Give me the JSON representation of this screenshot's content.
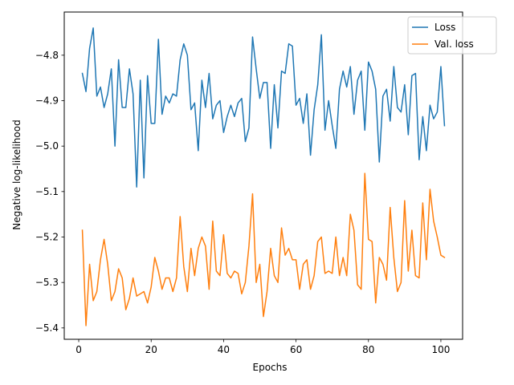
{
  "chart_data": {
    "type": "line",
    "title": "",
    "xlabel": "Epochs",
    "ylabel": "Negative log-likelihood",
    "xlim": [
      -4,
      106
    ],
    "ylim": [
      -5.425,
      -4.705
    ],
    "xticks": [
      0,
      20,
      40,
      60,
      80,
      100
    ],
    "xtick_labels": [
      "0",
      "20",
      "40",
      "60",
      "80",
      "100"
    ],
    "yticks": [
      -5.4,
      -5.3,
      -5.2,
      -5.1,
      -5.0,
      -4.9,
      -4.8
    ],
    "ytick_labels": [
      "−5.4",
      "−5.3",
      "−5.2",
      "−5.1",
      "−5.0",
      "−4.9",
      "−4.8"
    ],
    "grid": false,
    "legend_position": "top-right",
    "x": [
      1,
      2,
      3,
      4,
      5,
      6,
      7,
      8,
      9,
      10,
      11,
      12,
      13,
      14,
      15,
      16,
      17,
      18,
      19,
      20,
      21,
      22,
      23,
      24,
      25,
      26,
      27,
      28,
      29,
      30,
      31,
      32,
      33,
      34,
      35,
      36,
      37,
      38,
      39,
      40,
      41,
      42,
      43,
      44,
      45,
      46,
      47,
      48,
      49,
      50,
      51,
      52,
      53,
      54,
      55,
      56,
      57,
      58,
      59,
      60,
      61,
      62,
      63,
      64,
      65,
      66,
      67,
      68,
      69,
      70,
      71,
      72,
      73,
      74,
      75,
      76,
      77,
      78,
      79,
      80,
      81,
      82,
      83,
      84,
      85,
      86,
      87,
      88,
      89,
      90,
      91,
      92,
      93,
      94,
      95,
      96,
      97,
      98,
      99,
      100,
      101
    ],
    "series": [
      {
        "name": "Loss",
        "color": "#1f77b4",
        "values": [
          -4.84,
          -4.88,
          -4.785,
          -4.74,
          -4.89,
          -4.87,
          -4.915,
          -4.885,
          -4.83,
          -5.0,
          -4.81,
          -4.915,
          -4.915,
          -4.83,
          -4.885,
          -5.09,
          -4.855,
          -5.07,
          -4.845,
          -4.95,
          -4.95,
          -4.765,
          -4.93,
          -4.89,
          -4.905,
          -4.885,
          -4.89,
          -4.81,
          -4.775,
          -4.8,
          -4.92,
          -4.905,
          -5.01,
          -4.855,
          -4.915,
          -4.84,
          -4.94,
          -4.91,
          -4.9,
          -4.97,
          -4.935,
          -4.91,
          -4.935,
          -4.905,
          -4.895,
          -4.99,
          -4.96,
          -4.76,
          -4.83,
          -4.895,
          -4.86,
          -4.86,
          -5.005,
          -4.865,
          -4.96,
          -4.835,
          -4.84,
          -4.775,
          -4.78,
          -4.91,
          -4.895,
          -4.95,
          -4.885,
          -5.02,
          -4.92,
          -4.865,
          -4.755,
          -4.965,
          -4.9,
          -4.955,
          -5.005,
          -4.875,
          -4.835,
          -4.87,
          -4.825,
          -4.93,
          -4.855,
          -4.835,
          -4.965,
          -4.815,
          -4.835,
          -4.875,
          -5.035,
          -4.89,
          -4.875,
          -4.945,
          -4.825,
          -4.915,
          -4.925,
          -4.865,
          -4.975,
          -4.845,
          -4.84,
          -5.03,
          -4.935,
          -5.01,
          -4.91,
          -4.94,
          -4.925,
          -4.825,
          -4.955
        ]
      },
      {
        "name": "Val. loss",
        "color": "#ff7f0e",
        "values": [
          -5.185,
          -5.395,
          -5.26,
          -5.34,
          -5.32,
          -5.25,
          -5.205,
          -5.26,
          -5.34,
          -5.32,
          -5.27,
          -5.29,
          -5.36,
          -5.335,
          -5.29,
          -5.33,
          -5.325,
          -5.32,
          -5.345,
          -5.31,
          -5.245,
          -5.275,
          -5.315,
          -5.29,
          -5.29,
          -5.32,
          -5.29,
          -5.155,
          -5.265,
          -5.32,
          -5.225,
          -5.285,
          -5.225,
          -5.2,
          -5.22,
          -5.315,
          -5.165,
          -5.275,
          -5.285,
          -5.195,
          -5.28,
          -5.29,
          -5.275,
          -5.28,
          -5.325,
          -5.3,
          -5.22,
          -5.105,
          -5.3,
          -5.26,
          -5.375,
          -5.32,
          -5.225,
          -5.285,
          -5.3,
          -5.18,
          -5.24,
          -5.225,
          -5.25,
          -5.25,
          -5.315,
          -5.26,
          -5.25,
          -5.315,
          -5.285,
          -5.21,
          -5.2,
          -5.28,
          -5.275,
          -5.28,
          -5.2,
          -5.285,
          -5.245,
          -5.285,
          -5.15,
          -5.185,
          -5.305,
          -5.315,
          -5.06,
          -5.205,
          -5.21,
          -5.345,
          -5.245,
          -5.26,
          -5.295,
          -5.135,
          -5.245,
          -5.32,
          -5.3,
          -5.12,
          -5.275,
          -5.185,
          -5.285,
          -5.29,
          -5.125,
          -5.25,
          -5.095,
          -5.165,
          -5.2,
          -5.24,
          -5.245
        ]
      }
    ]
  }
}
